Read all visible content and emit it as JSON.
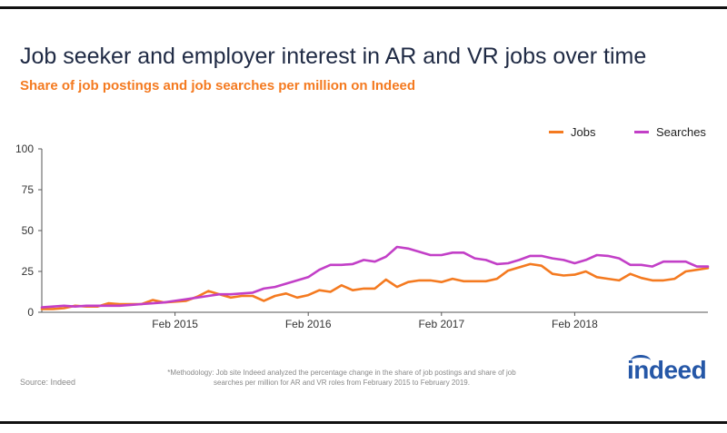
{
  "title": "Job seeker and employer interest in AR and VR jobs over time",
  "subtitle": "Share of job postings and job searches per million on Indeed",
  "legend": {
    "jobs": "Jobs",
    "searches": "Searches"
  },
  "source": "Source: Indeed",
  "methodology": "*Methodology: Job site Indeed analyzed the percentage change in the share of job postings and share of job searches per million for AR and VR roles from February 2015 to February 2019.",
  "logo_text": "indeed",
  "colors": {
    "jobs": "#f47a20",
    "searches": "#c23fc7",
    "title": "#1f2a44",
    "logo": "#2557a7"
  },
  "chart_data": {
    "type": "line",
    "title": "Job seeker and employer interest in AR and VR jobs over time",
    "xlabel": "",
    "ylabel": "",
    "ylim": [
      0,
      100
    ],
    "yticks": [
      0,
      25,
      50,
      75,
      100
    ],
    "xtick_labels": [
      {
        "label": "Feb 2015",
        "index": 12
      },
      {
        "label": "Feb 2016",
        "index": 24
      },
      {
        "label": "Feb 2017",
        "index": 36
      },
      {
        "label": "Feb 2018",
        "index": 48
      }
    ],
    "num_points": 61,
    "series": [
      {
        "name": "Jobs",
        "values": [
          2,
          2,
          2.5,
          4,
          3.5,
          3.5,
          5.5,
          5,
          5,
          5,
          7.5,
          6,
          6.5,
          7,
          9.5,
          13,
          11,
          9,
          10,
          10,
          7,
          10,
          11.5,
          9,
          10.5,
          13.5,
          12.5,
          16.5,
          13.5,
          14.5,
          14.5,
          20,
          15.5,
          18.5,
          19.5,
          19.5,
          18.5,
          20.5,
          19,
          19,
          19,
          20.5,
          25.5,
          27.5,
          29.5,
          28.5,
          23.5,
          22.5,
          23,
          25,
          21.5,
          20.5,
          19.5,
          23.5,
          21,
          19.5,
          19.5,
          20.5,
          25,
          26,
          27
        ]
      },
      {
        "name": "Searches",
        "values": [
          3,
          3.5,
          4,
          3.5,
          4,
          4,
          4,
          4,
          4.5,
          5,
          5.5,
          6,
          7,
          8,
          9,
          10,
          11,
          11,
          11.5,
          12,
          14.5,
          15.5,
          17.5,
          19.5,
          21.5,
          26,
          29,
          29,
          29.5,
          32,
          31,
          34,
          40,
          39,
          37,
          35,
          35,
          36.5,
          36.5,
          33,
          32,
          29.5,
          30,
          32,
          34.5,
          34.5,
          33,
          32,
          30,
          32,
          35,
          34.5,
          33,
          29,
          29,
          28,
          31,
          31,
          31,
          28,
          28
        ]
      }
    ]
  }
}
